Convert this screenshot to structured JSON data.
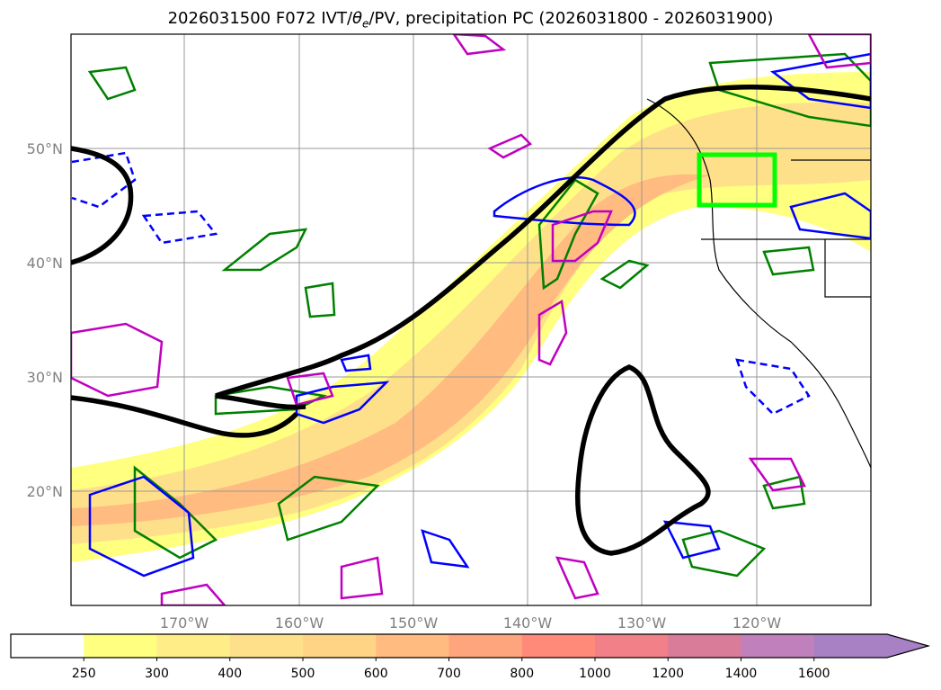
{
  "title": {
    "init": "2026031500",
    "forecast": "F072",
    "fields_prefix": "IVT/",
    "theta": "θ",
    "theta_sub": "e",
    "fields_suffix": "/PV, precipitation PC (2026031800 - 2026031900)"
  },
  "chart_data": {
    "type": "map",
    "projection": "PlateCarree",
    "lon_range": [
      -180,
      -110
    ],
    "lat_range": [
      10,
      60
    ],
    "lon_ticks": [
      "170°W",
      "160°W",
      "150°W",
      "140°W",
      "130°W",
      "120°W"
    ],
    "lat_ticks": [
      "50°N",
      "40°N",
      "30°N",
      "20°N"
    ],
    "grid": true,
    "highlight_box": {
      "color": "#00ff00",
      "lon": [
        -125,
        -118.5
      ],
      "lat": [
        45,
        49.5
      ]
    },
    "contour_colors": {
      "ivt_outline": "#000000",
      "precip": "#008000",
      "theta_e": "#0000ff",
      "pv": "#c000c0"
    },
    "colorbar": {
      "label_ticks": [
        "250",
        "300",
        "400",
        "500",
        "600",
        "700",
        "800",
        "1000",
        "1200",
        "1400",
        "1600"
      ],
      "levels": [
        250,
        300,
        400,
        500,
        600,
        700,
        800,
        1000,
        1200,
        1400,
        1600
      ],
      "colors": [
        "#ffffff",
        "#ffff80",
        "#ffee88",
        "#ffe08a",
        "#ffd485",
        "#ffbb80",
        "#ffa57e",
        "#ff8a7a",
        "#f28088",
        "#d87c9a",
        "#c080bb",
        "#a880c4"
      ],
      "extend": "max"
    }
  }
}
